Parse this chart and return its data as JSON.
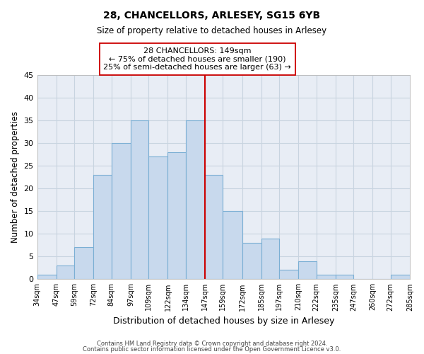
{
  "title": "28, CHANCELLORS, ARLESEY, SG15 6YB",
  "subtitle": "Size of property relative to detached houses in Arlesey",
  "xlabel": "Distribution of detached houses by size in Arlesey",
  "ylabel": "Number of detached properties",
  "bar_color": "#c8d9ed",
  "bar_edge_color": "#7bafd4",
  "background_color": "#ffffff",
  "grid_color": "#c8d4e0",
  "vline_x": 147,
  "vline_color": "#cc0000",
  "ylim": [
    0,
    45
  ],
  "yticks": [
    0,
    5,
    10,
    15,
    20,
    25,
    30,
    35,
    40,
    45
  ],
  "bins": [
    34,
    47,
    59,
    72,
    84,
    97,
    109,
    122,
    134,
    147,
    159,
    172,
    185,
    197,
    210,
    222,
    235,
    247,
    260,
    272,
    285
  ],
  "counts": [
    1,
    3,
    7,
    23,
    30,
    35,
    27,
    28,
    35,
    23,
    15,
    8,
    9,
    2,
    4,
    1,
    1,
    0,
    0,
    1
  ],
  "xtick_labels": [
    "34sqm",
    "47sqm",
    "59sqm",
    "72sqm",
    "84sqm",
    "97sqm",
    "109sqm",
    "122sqm",
    "134sqm",
    "147sqm",
    "159sqm",
    "172sqm",
    "185sqm",
    "197sqm",
    "210sqm",
    "222sqm",
    "235sqm",
    "247sqm",
    "260sqm",
    "272sqm",
    "285sqm"
  ],
  "annotation_title": "28 CHANCELLORS: 149sqm",
  "annotation_line1": "← 75% of detached houses are smaller (190)",
  "annotation_line2": "25% of semi-detached houses are larger (63) →",
  "footer1": "Contains HM Land Registry data © Crown copyright and database right 2024.",
  "footer2": "Contains public sector information licensed under the Open Government Licence v3.0."
}
